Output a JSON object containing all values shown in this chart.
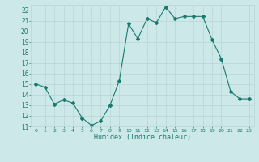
{
  "x": [
    0,
    1,
    2,
    3,
    4,
    5,
    6,
    7,
    8,
    9,
    10,
    11,
    12,
    13,
    14,
    15,
    16,
    17,
    18,
    19,
    20,
    21,
    22,
    23
  ],
  "y": [
    15.0,
    14.7,
    13.1,
    13.5,
    13.2,
    11.8,
    11.1,
    11.5,
    13.0,
    15.3,
    20.7,
    19.3,
    21.2,
    20.8,
    22.3,
    21.2,
    21.4,
    21.4,
    21.4,
    19.2,
    17.4,
    14.3,
    13.6,
    13.6
  ],
  "line_color": "#1a7a6e",
  "marker": "D",
  "marker_size": 2,
  "bg_color": "#cce8e8",
  "grid_color": "#b8d4d4",
  "tick_label_color": "#1a7a6e",
  "xlabel": "Humidex (Indice chaleur)",
  "xlabel_color": "#1a7a6e",
  "ylim": [
    11,
    22.5
  ],
  "xlim": [
    -0.5,
    23.5
  ],
  "yticks": [
    11,
    12,
    13,
    14,
    15,
    16,
    17,
    18,
    19,
    20,
    21,
    22
  ],
  "xticks": [
    0,
    1,
    2,
    3,
    4,
    5,
    6,
    7,
    8,
    9,
    10,
    11,
    12,
    13,
    14,
    15,
    16,
    17,
    18,
    19,
    20,
    21,
    22,
    23
  ],
  "figsize": [
    3.2,
    2.0
  ],
  "dpi": 100
}
